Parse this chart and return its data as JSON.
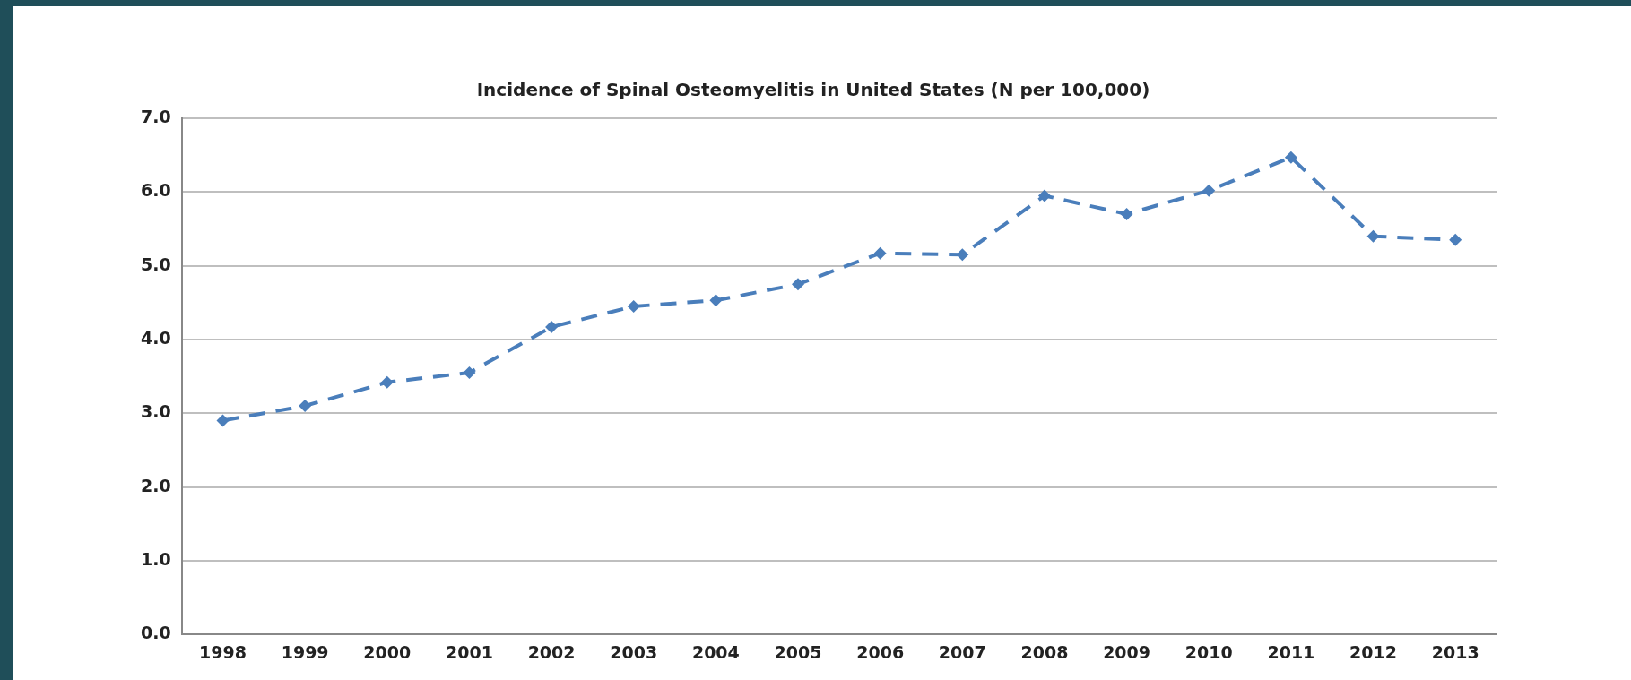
{
  "chart_data": {
    "type": "line",
    "title": "Incidence of Spinal Osteomyelitis in United States (N per 100,000)",
    "categories": [
      "1998",
      "1999",
      "2000",
      "2001",
      "2002",
      "2003",
      "2004",
      "2005",
      "2006",
      "2007",
      "2008",
      "2009",
      "2010",
      "2011",
      "2012",
      "2013"
    ],
    "values": [
      2.9,
      3.1,
      3.42,
      3.55,
      4.17,
      4.45,
      4.53,
      4.75,
      5.17,
      5.15,
      5.95,
      5.7,
      6.02,
      6.47,
      5.4,
      5.35
    ],
    "color": "#4a7ebb",
    "ylim": [
      0,
      7
    ],
    "yticks": [
      {
        "value": 0,
        "label": "0.0"
      },
      {
        "value": 1,
        "label": "1.0"
      },
      {
        "value": 2,
        "label": "2.0"
      },
      {
        "value": 3,
        "label": "3.0"
      },
      {
        "value": 4,
        "label": "4.0"
      },
      {
        "value": 5,
        "label": "5.0"
      },
      {
        "value": 6,
        "label": "6.0"
      },
      {
        "value": 7,
        "label": "7.0"
      }
    ],
    "grid": "y",
    "marker": "diamond",
    "line_style": "dashed"
  }
}
